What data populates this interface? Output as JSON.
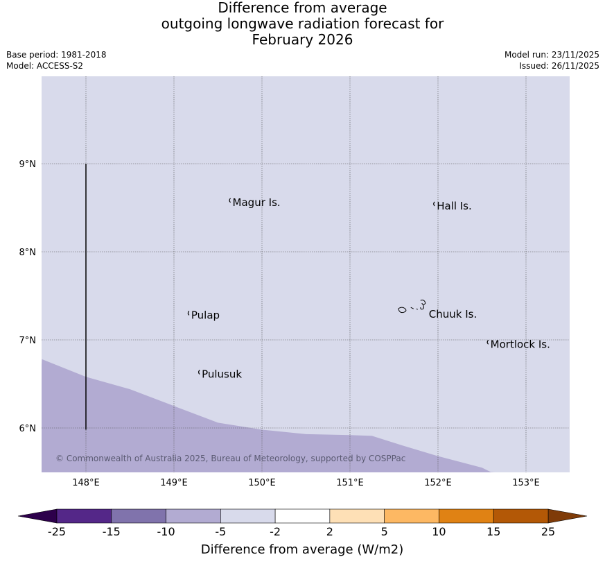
{
  "title": {
    "line1": "Difference from average",
    "line2": "outgoing longwave radiation forecast for",
    "line3": "February 2026"
  },
  "meta_left": {
    "base_period": "Base period: 1981-2018",
    "model": "Model: ACCESS-S2"
  },
  "meta_right": {
    "model_run": "Model run: 23/11/2025",
    "issued": "Issued: 26/11/2025"
  },
  "map": {
    "lon_range": [
      147.5,
      153.5
    ],
    "lat_range": [
      5.5,
      10.0
    ],
    "lon_ticks": [
      {
        "value": 148,
        "label": "148°E"
      },
      {
        "value": 149,
        "label": "149°E"
      },
      {
        "value": 150,
        "label": "150°E"
      },
      {
        "value": 151,
        "label": "151°E"
      },
      {
        "value": 152,
        "label": "152°E"
      },
      {
        "value": 153,
        "label": "153°E"
      }
    ],
    "lat_ticks": [
      {
        "value": 9,
        "label": "9°N"
      },
      {
        "value": 8,
        "label": "8°N"
      },
      {
        "value": 7,
        "label": "7°N"
      },
      {
        "value": 6,
        "label": "6°N"
      }
    ],
    "background_category": "-5 to -2",
    "regions": [
      {
        "category": "-10 to -5",
        "color": "#b2abd2",
        "boundary": [
          [
            147.5,
            6.78
          ],
          [
            148.0,
            6.58
          ],
          [
            148.5,
            6.44
          ],
          [
            149.0,
            6.25
          ],
          [
            149.5,
            6.06
          ],
          [
            150.0,
            5.98
          ],
          [
            150.5,
            5.93
          ],
          [
            151.0,
            5.92
          ],
          [
            151.25,
            5.91
          ],
          [
            151.6,
            5.8
          ],
          [
            152.0,
            5.68
          ],
          [
            152.5,
            5.55
          ],
          [
            152.6,
            5.5
          ]
        ]
      }
    ],
    "islands": [
      {
        "name": "Magur Is.",
        "lon": 149.65,
        "lat": 8.56
      },
      {
        "name": "Hall Is.",
        "lon": 151.97,
        "lat": 8.52
      },
      {
        "name": "Pulap",
        "lon": 149.18,
        "lat": 7.28
      },
      {
        "name": "Chuuk Is.",
        "lon": 151.88,
        "lat": 7.29
      },
      {
        "name": "Mortlock Is.",
        "lon": 152.58,
        "lat": 6.95
      },
      {
        "name": "Pulusuk",
        "lon": 149.3,
        "lat": 6.61
      }
    ],
    "boundary_line": {
      "lon": 148.0,
      "lat_from": 5.98,
      "lat_to": 9.0
    },
    "credit": "© Commonwealth of Australia 2025, Bureau of Meteorology, supported by COSPPac"
  },
  "colorbar": {
    "title": "Difference from average (W/m2)",
    "bins": [
      {
        "from": "-25",
        "to": "-15",
        "color": "#542788"
      },
      {
        "from": "-15",
        "to": "-10",
        "color": "#8073ac"
      },
      {
        "from": "-10",
        "to": "-5",
        "color": "#b2abd2"
      },
      {
        "from": "-5",
        "to": "-2",
        "color": "#d8daeb"
      },
      {
        "from": "-2",
        "to": "2",
        "color": "#ffffff"
      },
      {
        "from": "2",
        "to": "5",
        "color": "#fee0b6"
      },
      {
        "from": "5",
        "to": "10",
        "color": "#fdb863"
      },
      {
        "from": "10",
        "to": "15",
        "color": "#e08214"
      },
      {
        "from": "15",
        "to": "25",
        "color": "#b35806"
      }
    ],
    "under_color": "#2d004b",
    "over_color": "#7f3b08",
    "tick_labels": [
      "-25",
      "-15",
      "-10",
      "-5",
      "-2",
      "2",
      "5",
      "10",
      "15",
      "25"
    ]
  }
}
